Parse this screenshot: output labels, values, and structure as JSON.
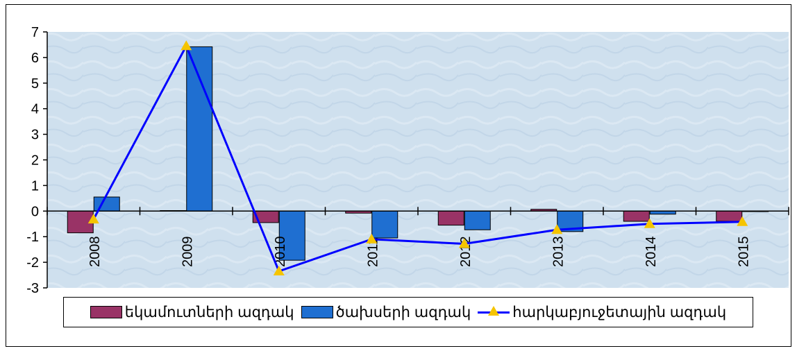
{
  "chart_data": {
    "type": "bar",
    "categories": [
      "2008",
      "2009",
      "2010",
      "2011",
      "2012",
      "2013",
      "2014",
      "2015"
    ],
    "series": [
      {
        "name": "եկամուտների ազդակ",
        "kind": "bar",
        "color": "#993366",
        "values": [
          -0.85,
          0.02,
          -0.45,
          -0.08,
          -0.55,
          0.07,
          -0.4,
          -0.4
        ]
      },
      {
        "name": "ծախսերի ազդակ",
        "kind": "bar",
        "color": "#1f6fd1",
        "values": [
          0.55,
          6.42,
          -1.92,
          -1.05,
          -0.73,
          -0.8,
          -0.12,
          -0.02
        ]
      },
      {
        "name": "հարկաբյուջետային ազդակ",
        "kind": "line",
        "color": "#0000ff",
        "marker_color": "#f5c400",
        "values": [
          -0.32,
          6.45,
          -2.35,
          -1.1,
          -1.28,
          -0.73,
          -0.5,
          -0.42
        ]
      }
    ],
    "yticks": [
      "7",
      "6",
      "5",
      "4",
      "3",
      "2",
      "1",
      "0",
      "-1",
      "-2",
      "-3"
    ],
    "ylim": [
      -3,
      7
    ],
    "legend_position": "bottom",
    "grid": false,
    "xlabel": "",
    "ylabel": "",
    "title": ""
  }
}
